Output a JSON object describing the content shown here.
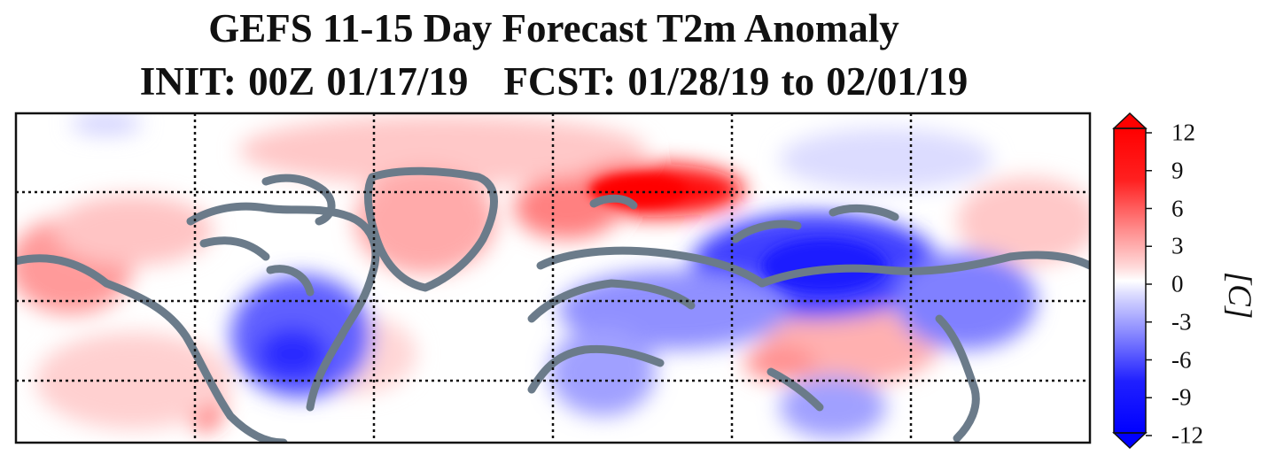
{
  "title": {
    "line1": "GEFS 11-15 Day Forecast T2m Anomaly",
    "init": "INIT: 00Z 01/17/19",
    "fcst": "FCST: 01/28/19 to 02/01/19"
  },
  "colorbar": {
    "ticks": [
      "12",
      "9",
      "6",
      "3",
      "0",
      "-3",
      "-6",
      "-9",
      "-12"
    ],
    "unit": "[C]",
    "colors": {
      "strong_warm": "#ff0000",
      "mid_warm": "#ff8a8a",
      "weak_warm": "#ffd6d6",
      "neutral": "#ffffff",
      "weak_cold": "#d8d8ff",
      "mid_cold": "#8a8aff",
      "strong_cold": "#0000ff"
    }
  },
  "map": {
    "coastline_color": "#6b7b8a",
    "grid": "dotted",
    "background": "white"
  }
}
